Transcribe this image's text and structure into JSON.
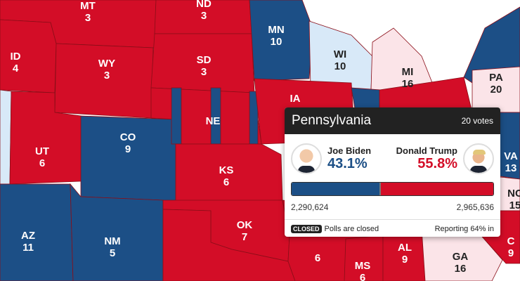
{
  "colors": {
    "rep": "#d30d27",
    "dem": "#1c4f86",
    "lean_rep": "#fbe4e8",
    "lean_dem": "#d8e9f8"
  },
  "states": [
    {
      "abbr": "MT",
      "votes": "3",
      "winner": "rep"
    },
    {
      "abbr": "ND",
      "votes": "3",
      "winner": "rep"
    },
    {
      "abbr": "ID",
      "votes": "4",
      "winner": "rep"
    },
    {
      "abbr": "WY",
      "votes": "3",
      "winner": "rep"
    },
    {
      "abbr": "SD",
      "votes": "3",
      "winner": "rep"
    },
    {
      "abbr": "UT",
      "votes": "6",
      "winner": "rep"
    },
    {
      "abbr": "CO",
      "votes": "9",
      "winner": "dem"
    },
    {
      "abbr": "NE",
      "votes": "",
      "winner": "split"
    },
    {
      "abbr": "KS",
      "votes": "6",
      "winner": "rep"
    },
    {
      "abbr": "MN",
      "votes": "10",
      "winner": "dem"
    },
    {
      "abbr": "WI",
      "votes": "10",
      "winner": "lean_dem"
    },
    {
      "abbr": "MI",
      "votes": "16",
      "winner": "lean_rep"
    },
    {
      "abbr": "IA",
      "votes": "",
      "winner": "rep"
    },
    {
      "abbr": "PA",
      "votes": "20",
      "winner": "lean_rep"
    },
    {
      "abbr": "VA",
      "votes": "13",
      "winner": "dem"
    },
    {
      "abbr": "NC",
      "votes": "15",
      "winner": "lean_rep"
    },
    {
      "abbr": "AZ",
      "votes": "11",
      "winner": "dem"
    },
    {
      "abbr": "NM",
      "votes": "5",
      "winner": "dem"
    },
    {
      "abbr": "OK",
      "votes": "7",
      "winner": "rep"
    },
    {
      "abbr": "",
      "votes": "6",
      "winner": "rep"
    },
    {
      "abbr": "MS",
      "votes": "6",
      "winner": "rep"
    },
    {
      "abbr": "AL",
      "votes": "9",
      "winner": "rep"
    },
    {
      "abbr": "GA",
      "votes": "16",
      "winner": "lean_rep"
    },
    {
      "abbr": "C",
      "votes": "9",
      "winner": "rep"
    }
  ],
  "tooltip": {
    "state": "Pennsylvania",
    "votes": "20 votes",
    "dem": {
      "name": "Joe Biden",
      "pct": "43.1%",
      "count": "2,290,624",
      "share": 43.1
    },
    "rep": {
      "name": "Donald Trump",
      "pct": "55.8%",
      "count": "2,965,636",
      "share": 55.8
    },
    "badge": "CLOSED",
    "status": "Polls are closed",
    "reporting": "Reporting 64% in"
  }
}
